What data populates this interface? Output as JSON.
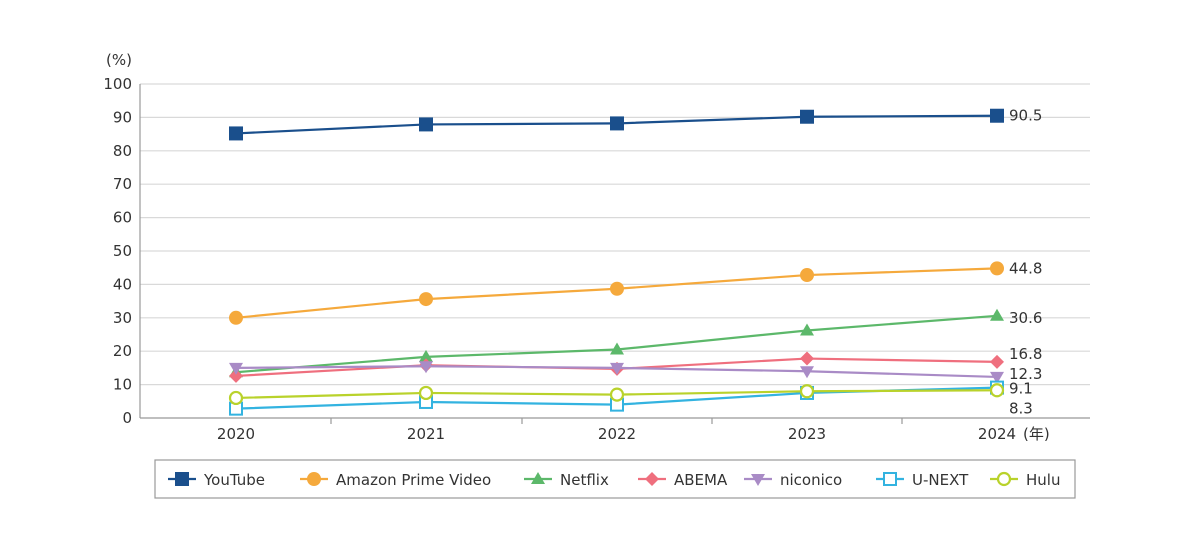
{
  "chart_data": {
    "type": "line",
    "categories": [
      "2020",
      "2021",
      "2022",
      "2023",
      "2024"
    ],
    "x_unit": "(年)",
    "y_unit": "(%)",
    "ylim": [
      0,
      100
    ],
    "yticks": [
      0,
      10,
      20,
      30,
      40,
      50,
      60,
      70,
      80,
      90,
      100
    ],
    "grid": true,
    "legend": "bottom",
    "series": [
      {
        "name": "YouTube",
        "color": "#1a4f8c",
        "marker": "square-filled",
        "values": [
          85.2,
          87.9,
          88.2,
          90.2,
          90.5
        ],
        "end_label": "90.5"
      },
      {
        "name": "Amazon Prime Video",
        "color": "#f5a93c",
        "marker": "circle-filled",
        "values": [
          30.0,
          35.6,
          38.7,
          42.8,
          44.8
        ],
        "end_label": "44.8"
      },
      {
        "name": "Netflix",
        "color": "#5cb86a",
        "marker": "triangle-filled",
        "values": [
          13.7,
          18.3,
          20.5,
          26.2,
          30.6
        ],
        "end_label": "30.6"
      },
      {
        "name": "ABEMA",
        "color": "#ef6f7e",
        "marker": "diamond-filled",
        "values": [
          12.6,
          15.8,
          14.7,
          17.8,
          16.8
        ],
        "end_label": "16.8"
      },
      {
        "name": "niconico",
        "color": "#a98bc6",
        "marker": "triangle-down-filled",
        "values": [
          15.0,
          15.5,
          15.0,
          14.0,
          12.3
        ],
        "end_label": "12.3"
      },
      {
        "name": "U-NEXT",
        "color": "#33b3e0",
        "marker": "square-open",
        "values": [
          2.8,
          4.8,
          4.0,
          7.5,
          9.1
        ],
        "end_label": "9.1"
      },
      {
        "name": "Hulu",
        "color": "#b9d22b",
        "marker": "circle-open",
        "values": [
          6.0,
          7.5,
          7.0,
          8.0,
          8.3
        ],
        "end_label": "8.3"
      }
    ]
  }
}
